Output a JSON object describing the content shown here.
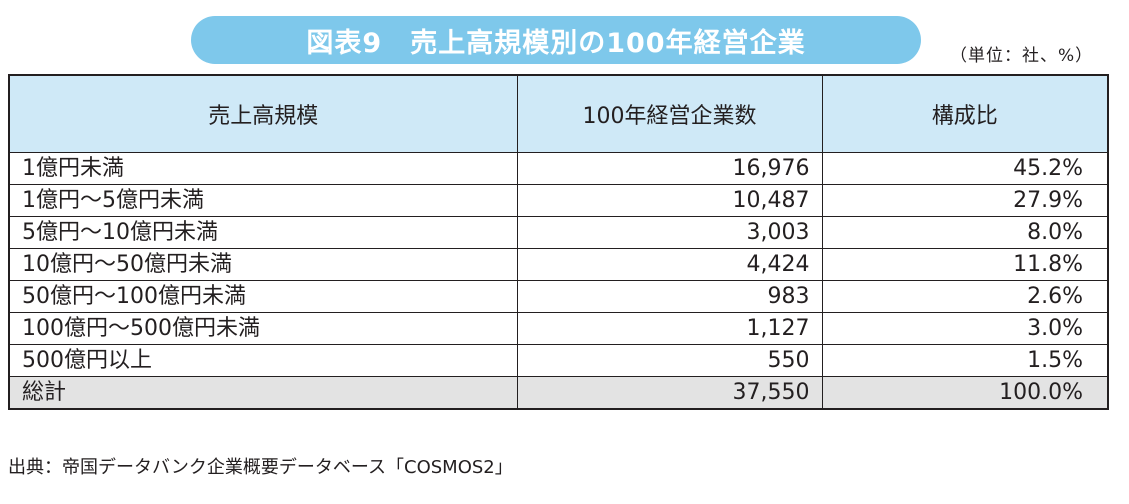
{
  "title": "図表9　売上高規模別の100年経営企業",
  "unit_note": "（単位：社、%）",
  "table": {
    "headers": [
      "売上高規模",
      "100年経営企業数",
      "構成比"
    ],
    "rows": [
      {
        "label": "1億円未満",
        "count": "16,976",
        "share": "45.2%"
      },
      {
        "label": "1億円～5億円未満",
        "count": "10,487",
        "share": "27.9%"
      },
      {
        "label": "5億円～10億円未満",
        "count": "3,003",
        "share": "8.0%"
      },
      {
        "label": "10億円～50億円未満",
        "count": "4,424",
        "share": "11.8%"
      },
      {
        "label": "50億円～100億円未満",
        "count": "983",
        "share": "2.6%"
      },
      {
        "label": "100億円～500億円未満",
        "count": "1,127",
        "share": "3.0%"
      },
      {
        "label": "500億円以上",
        "count": "550",
        "share": "1.5%"
      }
    ],
    "total": {
      "label": "総計",
      "count": "37,550",
      "share": "100.0%"
    }
  },
  "source_note": "出典：帝国データバンク企業概要データベース「COSMOS2」",
  "colors": {
    "title_background": "#7ec8eb",
    "header_background": "#cfe9f7",
    "total_background": "#e3e3e3"
  }
}
